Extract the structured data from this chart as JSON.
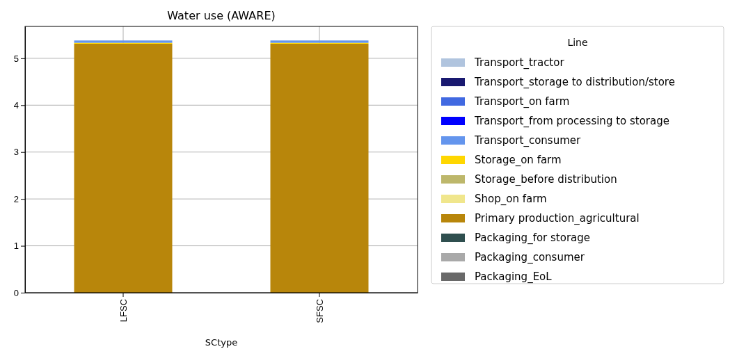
{
  "chart_data": {
    "type": "bar",
    "title": "Water use (AWARE)",
    "xlabel": "SCtype",
    "legend_title": "Line",
    "categories": [
      "LFSC",
      "SFSC"
    ],
    "stacked": true,
    "grid": true,
    "legend": "right",
    "ylim": [
      0,
      5.68
    ],
    "yticks": [
      0,
      1,
      2,
      3,
      4,
      5
    ],
    "series": [
      {
        "name": "Packaging_EoL",
        "color": "#696969",
        "values": [
          0,
          0
        ]
      },
      {
        "name": "Packaging_consumer",
        "color": "#a9a9a9",
        "values": [
          0,
          0
        ]
      },
      {
        "name": "Packaging_for storage",
        "color": "#2f4f4f",
        "values": [
          0,
          0
        ]
      },
      {
        "name": "Primary production_agricultural",
        "color": "#b8860b",
        "values": [
          5.31,
          5.31
        ]
      },
      {
        "name": "Shop_on farm",
        "color": "#f0e68c",
        "values": [
          0,
          0
        ]
      },
      {
        "name": "Storage_before distribution",
        "color": "#bdb76b",
        "values": [
          0,
          0
        ]
      },
      {
        "name": "Storage_on farm",
        "color": "#ffd700",
        "values": [
          0.02,
          0.02
        ]
      },
      {
        "name": "Transport_consumer",
        "color": "#6495ed",
        "values": [
          0.05,
          0.05
        ]
      },
      {
        "name": "Transport_from processing to storage",
        "color": "#0000ff",
        "values": [
          0,
          0
        ]
      },
      {
        "name": "Transport_on farm",
        "color": "#4169e1",
        "values": [
          0,
          0
        ]
      },
      {
        "name": "Transport_storage to distribution/store",
        "color": "#191970",
        "values": [
          0,
          0
        ]
      },
      {
        "name": "Transport_tractor",
        "color": "#b0c4de",
        "values": [
          0,
          0
        ]
      }
    ]
  }
}
